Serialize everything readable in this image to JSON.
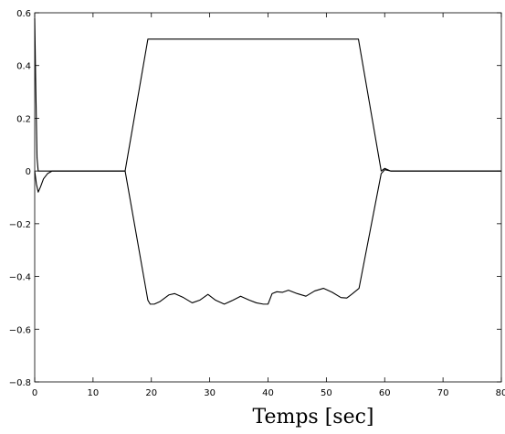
{
  "chart_data": {
    "type": "line",
    "title": "",
    "xlabel": "Temps [sec]",
    "ylabel": "",
    "xlim": [
      0,
      80
    ],
    "ylim": [
      -0.8,
      0.6
    ],
    "grid": false,
    "legend": "none",
    "x_ticks": [
      0,
      10,
      20,
      30,
      40,
      50,
      60,
      70,
      80
    ],
    "x_tick_labels": [
      "0",
      "10",
      "20",
      "30",
      "40",
      "50",
      "60",
      "70",
      "80"
    ],
    "y_ticks": [
      -0.8,
      -0.6,
      -0.4,
      -0.2,
      0,
      0.2,
      0.4,
      0.6
    ],
    "y_tick_labels": [
      "−0.8",
      "−0.6",
      "−0.4",
      "−0.2",
      "0",
      "0.2",
      "0.4",
      "0.6"
    ],
    "line_color": "#000000",
    "series": [
      {
        "points": [
          [
            0,
            0.58
          ],
          [
            0.2,
            0.3
          ],
          [
            0.4,
            0.05
          ],
          [
            0.6,
            0.0
          ],
          [
            1,
            0
          ],
          [
            15.5,
            0
          ],
          [
            19.4,
            0.5
          ],
          [
            55.5,
            0.5
          ],
          [
            59.4,
            0.0
          ],
          [
            60,
            0.01
          ],
          [
            61,
            0
          ],
          [
            80,
            0
          ]
        ]
      },
      {
        "points": [
          [
            0,
            0.0
          ],
          [
            0.3,
            -0.05
          ],
          [
            0.6,
            -0.08
          ],
          [
            1.0,
            -0.06
          ],
          [
            1.5,
            -0.03
          ],
          [
            2.2,
            -0.01
          ],
          [
            3,
            0
          ],
          [
            15.5,
            0
          ],
          [
            19.4,
            -0.49
          ],
          [
            19.8,
            -0.505
          ],
          [
            20.5,
            -0.505
          ],
          [
            21.5,
            -0.495
          ],
          [
            23,
            -0.47
          ],
          [
            24,
            -0.465
          ],
          [
            25.5,
            -0.48
          ],
          [
            27,
            -0.5
          ],
          [
            28.3,
            -0.49
          ],
          [
            29.7,
            -0.468
          ],
          [
            31,
            -0.49
          ],
          [
            32.5,
            -0.505
          ],
          [
            34,
            -0.49
          ],
          [
            35.3,
            -0.475
          ],
          [
            36.8,
            -0.49
          ],
          [
            38,
            -0.5
          ],
          [
            39.2,
            -0.505
          ],
          [
            40,
            -0.505
          ],
          [
            40.7,
            -0.465
          ],
          [
            41.5,
            -0.458
          ],
          [
            42.5,
            -0.46
          ],
          [
            43.5,
            -0.452
          ],
          [
            45,
            -0.465
          ],
          [
            46.5,
            -0.475
          ],
          [
            48,
            -0.455
          ],
          [
            49.5,
            -0.445
          ],
          [
            51,
            -0.46
          ],
          [
            52.5,
            -0.48
          ],
          [
            53.5,
            -0.482
          ],
          [
            54.5,
            -0.465
          ],
          [
            55.6,
            -0.445
          ],
          [
            59.4,
            -0.01
          ],
          [
            60,
            0.005
          ],
          [
            61,
            0
          ],
          [
            80,
            0
          ]
        ]
      }
    ]
  }
}
